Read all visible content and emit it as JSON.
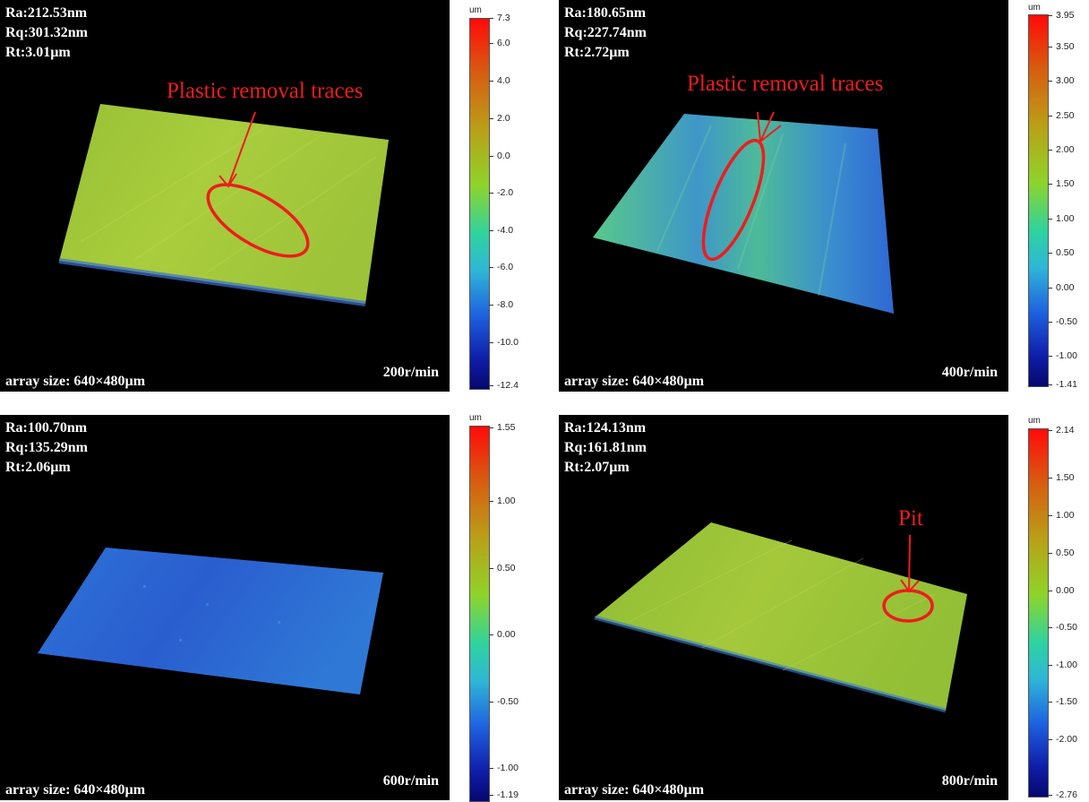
{
  "panels": [
    {
      "stats": [
        "Ra:212.53nm",
        "Rq:301.32nm",
        "Rt:3.01µm"
      ],
      "array_size": "array size: 640×480µm",
      "speed": "200r/min",
      "annotation": "Plastic removal traces",
      "colorbar": {
        "unit": "um",
        "ticks": [
          "7.3",
          "6.0",
          "4.0",
          "2.0",
          "0.0",
          "-2.0",
          "-4.0",
          "-6.0",
          "-8.0",
          "-10.0",
          "-12.4"
        ]
      },
      "surface_color": "#a5c93a"
    },
    {
      "stats": [
        "Ra:180.65nm",
        "Rq:227.74nm",
        "Rt:2.72µm"
      ],
      "array_size": "array size: 640×480µm",
      "speed": "400r/min",
      "annotation": "Plastic removal traces",
      "colorbar": {
        "unit": "um",
        "ticks": [
          "3.95",
          "3.50",
          "3.00",
          "2.50",
          "2.00",
          "1.50",
          "1.00",
          "0.50",
          "0.00",
          "-0.50",
          "-1.00",
          "-1.41"
        ]
      },
      "surface_color": "#3fb6a0"
    },
    {
      "stats": [
        "Ra:100.70nm",
        "Rq:135.29nm",
        "Rt:2.06µm"
      ],
      "array_size": "array size: 640×480µm",
      "speed": "600r/min",
      "annotation": "",
      "colorbar": {
        "unit": "um",
        "ticks": [
          "1.55",
          "1.00",
          "0.50",
          "0.00",
          "-0.50",
          "-1.00",
          "-1.19"
        ]
      },
      "surface_color": "#2f6fd6"
    },
    {
      "stats": [
        "Ra:124.13nm",
        "Rq:161.81nm",
        "Rt:2.07µm"
      ],
      "array_size": "array size: 640×480µm",
      "speed": "800r/min",
      "annotation": "Pit",
      "colorbar": {
        "unit": "um",
        "ticks": [
          "2.14",
          "1.50",
          "1.00",
          "0.50",
          "0.00",
          "-0.50",
          "-1.00",
          "-1.50",
          "-2.00",
          "-2.76"
        ]
      },
      "surface_color": "#9bbf36"
    }
  ]
}
